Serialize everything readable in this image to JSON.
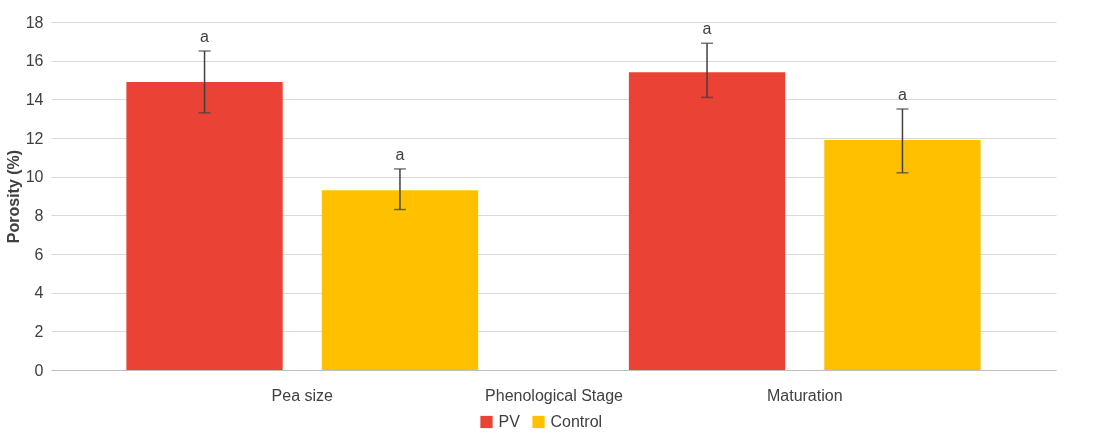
{
  "chart_data": {
    "type": "bar",
    "xlabel": "Phenological Stage",
    "ylabel": "Porosity (%)",
    "categories": [
      "Pea size",
      "Maturation"
    ],
    "series": [
      {
        "name": "PV",
        "color": "#ea4335",
        "values": [
          14.9,
          15.4
        ],
        "errors": [
          [
            13.3,
            16.5
          ],
          [
            14.1,
            16.9
          ]
        ],
        "value_labels": [
          "a",
          "a"
        ]
      },
      {
        "name": "Control",
        "color": "#ffc000",
        "values": [
          9.3,
          11.9
        ],
        "errors": [
          [
            8.3,
            10.4
          ],
          [
            10.2,
            13.5
          ]
        ],
        "value_labels": [
          "a",
          "a"
        ]
      }
    ],
    "ylim": [
      0,
      18
    ],
    "yticks": [
      0,
      2,
      4,
      6,
      8,
      10,
      12,
      14,
      16,
      18
    ],
    "grid": "y",
    "legend": "bottom"
  }
}
